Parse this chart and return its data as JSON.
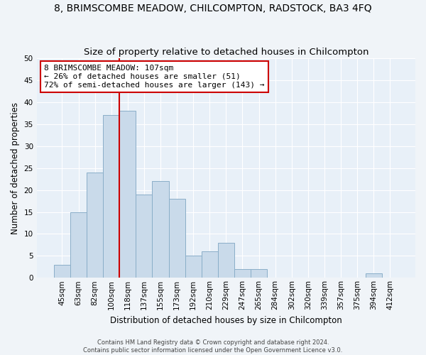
{
  "title": "8, BRIMSCOMBE MEADOW, CHILCOMPTON, RADSTOCK, BA3 4FQ",
  "subtitle": "Size of property relative to detached houses in Chilcompton",
  "xlabel": "Distribution of detached houses by size in Chilcompton",
  "ylabel": "Number of detached properties",
  "bar_labels": [
    "45sqm",
    "63sqm",
    "82sqm",
    "100sqm",
    "118sqm",
    "137sqm",
    "155sqm",
    "173sqm",
    "192sqm",
    "210sqm",
    "229sqm",
    "247sqm",
    "265sqm",
    "284sqm",
    "302sqm",
    "320sqm",
    "339sqm",
    "357sqm",
    "375sqm",
    "394sqm",
    "412sqm"
  ],
  "bar_values": [
    3,
    15,
    24,
    37,
    38,
    19,
    22,
    18,
    5,
    6,
    8,
    2,
    2,
    0,
    0,
    0,
    0,
    0,
    0,
    1,
    0
  ],
  "bar_color": "#c9daea",
  "bar_edge_color": "#8aaec8",
  "vline_color": "#cc0000",
  "ylim": [
    0,
    50
  ],
  "annotation_text": "8 BRIMSCOMBE MEADOW: 107sqm\n← 26% of detached houses are smaller (51)\n72% of semi-detached houses are larger (143) →",
  "annotation_box_color": "white",
  "annotation_box_edge": "#cc0000",
  "footer_line1": "Contains HM Land Registry data © Crown copyright and database right 2024.",
  "footer_line2": "Contains public sector information licensed under the Open Government Licence v3.0.",
  "bg_color": "#f0f4f8",
  "plot_bg_color": "#e8f0f8",
  "grid_color": "white",
  "title_fontsize": 10,
  "subtitle_fontsize": 9.5,
  "xlabel_fontsize": 8.5,
  "ylabel_fontsize": 8.5,
  "tick_fontsize": 7.5,
  "annot_fontsize": 8,
  "footer_fontsize": 6
}
